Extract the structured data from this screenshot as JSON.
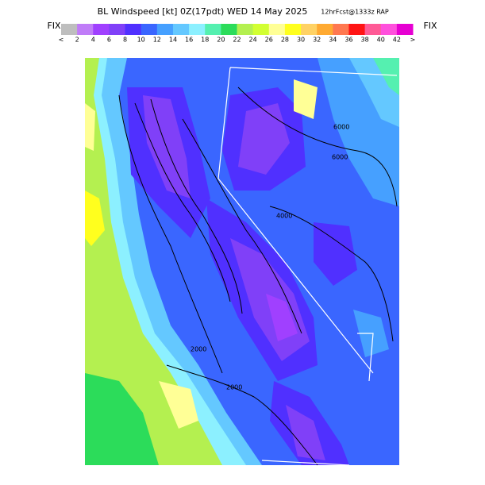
{
  "header": {
    "title": "BL Windspeed [kt] 0Z(17pdt) WED 14 May 2025",
    "forecast": "12hrFcst@1333z RAP",
    "fix_left": "FIX",
    "fix_right": "FIX"
  },
  "colorbar": {
    "colors": [
      "#bebebe",
      "#c07cf8",
      "#a040ff",
      "#8040f8",
      "#5030ff",
      "#3a66ff",
      "#46a0ff",
      "#64c8ff",
      "#8cf0ff",
      "#55f0b0",
      "#2cdc5a",
      "#b4f050",
      "#d2ff32",
      "#ffff96",
      "#ffff1e",
      "#ffd264",
      "#ffaa32",
      "#ff7850",
      "#ff1414",
      "#ff5a96",
      "#ff50dc",
      "#e600d2"
    ],
    "labels": [
      "<",
      "2",
      "4",
      "6",
      "8",
      "10",
      "12",
      "14",
      "16",
      "18",
      "20",
      "22",
      "24",
      "26",
      "28",
      "30",
      "32",
      "34",
      "36",
      "38",
      "40",
      "42",
      ">"
    ]
  },
  "contour_labels": [
    "6000",
    "6000",
    "4000",
    "2000",
    "2000"
  ]
}
